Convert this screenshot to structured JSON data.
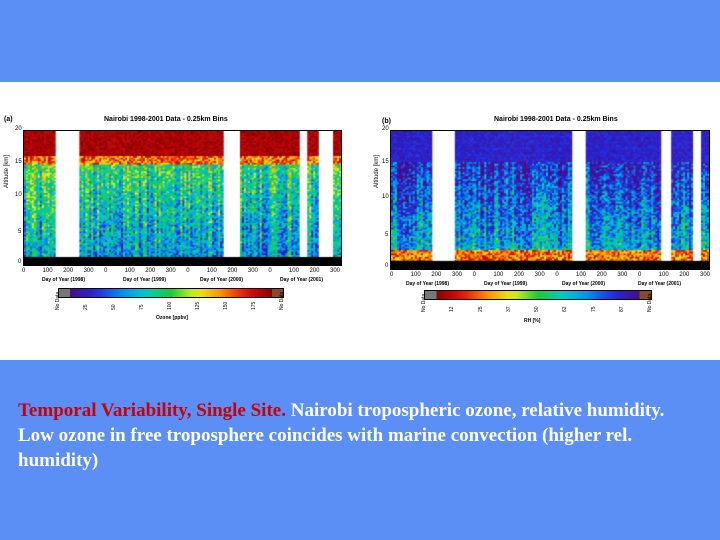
{
  "slide": {
    "background": "#5b8ff5",
    "caption_lead": "Temporal Variability, Single Site.",
    "caption_text": "  Nairobi tropospheric ozone, relative humidity.  Low ozone in free troposphere coincides with marine convection (higher rel. humidity)"
  },
  "chart_data": [
    {
      "type": "heatmap",
      "panel_label": "(a)",
      "title": "Nairobi 1998-2001 Data - 0.25km Bins",
      "ylabel": "Altitude [km]",
      "y_ticks": [
        "0",
        "5",
        "10",
        "15",
        "20"
      ],
      "ylim": [
        0,
        20
      ],
      "x_ticks": [
        "0",
        "100",
        "200",
        "300",
        "0",
        "100",
        "200",
        "300",
        "0",
        "100",
        "200",
        "300",
        "0",
        "100",
        "200",
        "300"
      ],
      "x_year_labels": [
        "Day of Year (1998)",
        "Day of Year (1999)",
        "Day of Year (2000)",
        "Day of Year (2001)"
      ],
      "colorbar_title": "Ozone [ppbv]",
      "colorbar_ticks": [
        "No Data",
        "25",
        "50",
        "75",
        "100",
        "125",
        "150",
        "175",
        "No Data"
      ],
      "colormap": "rainbow",
      "gaps": [
        [
          0.1,
          0.17
        ],
        [
          0.63,
          0.68
        ],
        [
          0.87,
          0.89
        ],
        [
          0.93,
          0.97
        ]
      ]
    },
    {
      "type": "heatmap",
      "panel_label": "(b)",
      "title": "Nairobi 1998-2001 Data - 0.25km Bins",
      "ylabel": "Altitude [km]",
      "y_ticks": [
        "0",
        "5",
        "10",
        "15",
        "20"
      ],
      "ylim": [
        0,
        20
      ],
      "x_ticks": [
        "0",
        "100",
        "200",
        "300",
        "0",
        "100",
        "200",
        "300",
        "0",
        "100",
        "200",
        "300",
        "0",
        "100",
        "200",
        "300"
      ],
      "x_year_labels": [
        "Day of Year (1998)",
        "Day of Year (1999)",
        "Day of Year (2000)",
        "Day of Year (2001)"
      ],
      "colorbar_title": "RH [%]",
      "colorbar_ticks": [
        "No Data",
        "12",
        "25",
        "37",
        "50",
        "62",
        "75",
        "87",
        "No Data"
      ],
      "colormap": "rainbow-reversed",
      "gaps": [
        [
          0.13,
          0.2
        ],
        [
          0.57,
          0.61
        ],
        [
          0.85,
          0.88
        ],
        [
          0.95,
          0.97
        ]
      ]
    }
  ]
}
